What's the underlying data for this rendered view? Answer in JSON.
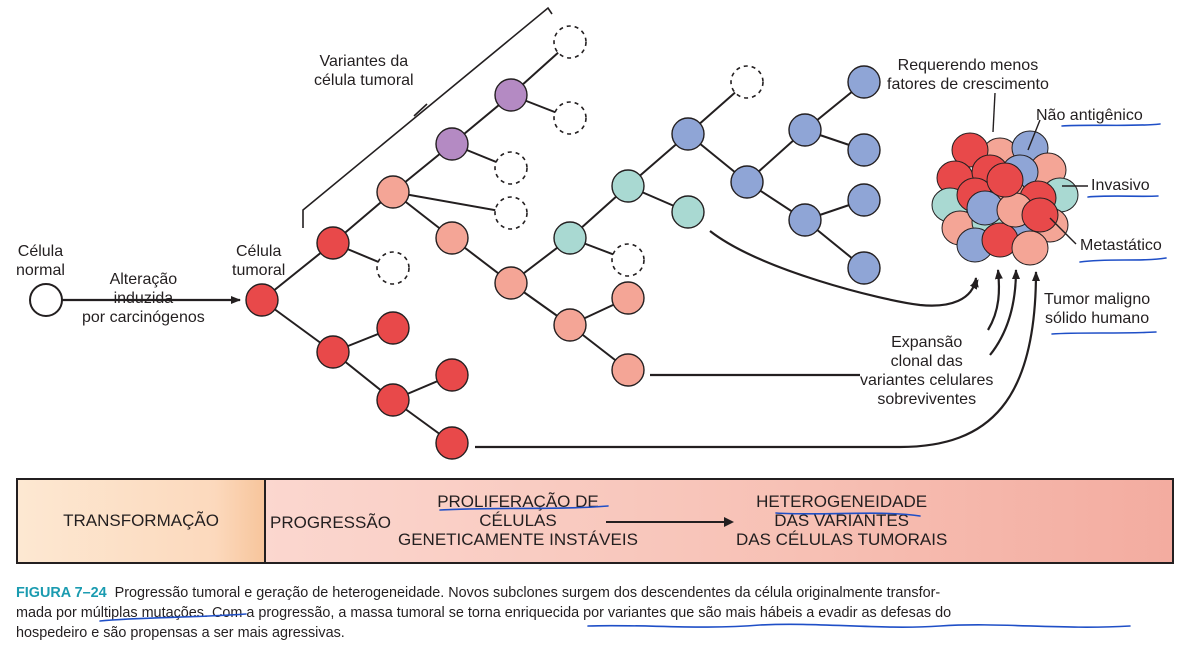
{
  "labels": {
    "normal_cell": [
      "Célula",
      "normal"
    ],
    "alteration": [
      "Alteração",
      "induzida",
      "por carcinógenos"
    ],
    "tumor_cell": [
      "Célula",
      "tumoral"
    ],
    "variants": [
      "Variantes da",
      "célula tumoral"
    ],
    "fewer_growth_factors": [
      "Requerendo menos",
      "fatores de crescimento"
    ],
    "non_antigenic": "Não antigênico",
    "invasive": "Invasivo",
    "metastatic": "Metastático",
    "malignant_tumor": [
      "Tumor maligno",
      "sólido humano"
    ],
    "clonal_expansion": [
      "Expansão",
      "clonal das",
      "variantes celulares",
      "sobreviventes"
    ]
  },
  "bar": {
    "transformation": "TRANSFORMAÇÃO",
    "progression": "PROGRESSÃO",
    "proliferation": [
      "PROLIFERAÇÃO DE",
      "CÉLULAS",
      "GENETICAMENTE INSTÁVEIS"
    ],
    "heterogeneity": [
      "HETEROGENEIDADE",
      "DAS VARIANTES",
      "DAS CÉLULAS TUMORAIS"
    ]
  },
  "caption": {
    "figure": "FIGURA 7–24",
    "lines": [
      "Progressão tumoral e geração de heterogeneidade. Novos subclones surgem dos descendentes da célula originalmente transfor-",
      "mada por múltiplas mutações. Com a progressão, a massa tumoral se torna enriquecida por variantes que são mais hábeis a evadir as defesas do",
      "hospedeiro e são propensas a ser mais agressivas."
    ]
  },
  "colors": {
    "red": "#e8494a",
    "salmon": "#f4a596",
    "purple": "#b48ac3",
    "teal": "#a9d9d2",
    "blue": "#8fa5d6",
    "ink": "#231f20",
    "annotation": "#1f4fc7",
    "figure_label": "#1a9bb0"
  }
}
